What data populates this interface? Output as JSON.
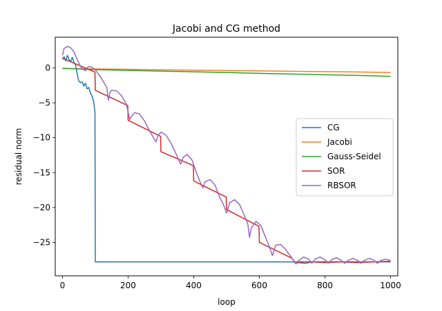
{
  "chart_data": {
    "type": "line",
    "title": "Jacobi and CG method",
    "xlabel": "loop",
    "ylabel": "residual norm",
    "xlim": [
      -22,
      1022
    ],
    "ylim": [
      -29.8,
      4.4
    ],
    "xticks": [
      0,
      200,
      400,
      600,
      800,
      1000
    ],
    "yticks": [
      0,
      -5,
      -10,
      -15,
      -20,
      -25
    ],
    "grid": false,
    "legend_position": "center-right",
    "series": [
      {
        "name": "CG",
        "color": "#1f77b4",
        "points": [
          [
            0,
            1.2
          ],
          [
            5,
            1.6
          ],
          [
            10,
            1.0
          ],
          [
            15,
            1.8
          ],
          [
            20,
            1.2
          ],
          [
            25,
            0.9
          ],
          [
            30,
            1.5
          ],
          [
            35,
            0.8
          ],
          [
            40,
            0.4
          ],
          [
            45,
            -0.8
          ],
          [
            48,
            -1.6
          ],
          [
            50,
            -1.9
          ],
          [
            55,
            -2.1
          ],
          [
            60,
            -2.0
          ],
          [
            65,
            -2.6
          ],
          [
            70,
            -2.2
          ],
          [
            75,
            -3.0
          ],
          [
            80,
            -2.8
          ],
          [
            85,
            -3.6
          ],
          [
            90,
            -4.0
          ],
          [
            95,
            -4.8
          ],
          [
            99,
            -6.3
          ],
          [
            100,
            -27.8
          ],
          [
            200,
            -27.8
          ],
          [
            400,
            -27.8
          ],
          [
            600,
            -27.8
          ],
          [
            700,
            -27.8
          ],
          [
            1000,
            -27.8
          ]
        ]
      },
      {
        "name": "Jacobi",
        "color": "#ff7f0e",
        "points": [
          [
            0,
            -0.1
          ],
          [
            100,
            -0.15
          ],
          [
            200,
            -0.2
          ],
          [
            300,
            -0.28
          ],
          [
            400,
            -0.32
          ],
          [
            500,
            -0.38
          ],
          [
            600,
            -0.42
          ],
          [
            700,
            -0.48
          ],
          [
            800,
            -0.53
          ],
          [
            900,
            -0.58
          ],
          [
            1000,
            -0.65
          ]
        ]
      },
      {
        "name": "Gauss-Seidel",
        "color": "#2ca02c",
        "points": [
          [
            0,
            -0.05
          ],
          [
            100,
            -0.25
          ],
          [
            200,
            -0.35
          ],
          [
            300,
            -0.45
          ],
          [
            400,
            -0.55
          ],
          [
            500,
            -0.65
          ],
          [
            600,
            -0.78
          ],
          [
            700,
            -0.88
          ],
          [
            800,
            -0.98
          ],
          [
            900,
            -1.08
          ],
          [
            1000,
            -1.2
          ]
        ]
      },
      {
        "name": "SOR",
        "color": "#d62728",
        "points": [
          [
            0,
            1.4
          ],
          [
            99,
            -0.6
          ],
          [
            100,
            -3.2
          ],
          [
            199,
            -5.4
          ],
          [
            200,
            -7.5
          ],
          [
            299,
            -9.8
          ],
          [
            300,
            -12.0
          ],
          [
            399,
            -14.0
          ],
          [
            400,
            -16.2
          ],
          [
            499,
            -18.5
          ],
          [
            500,
            -20.3
          ],
          [
            599,
            -22.7
          ],
          [
            600,
            -25.0
          ],
          [
            700,
            -27.3
          ],
          [
            710,
            -28.0
          ],
          [
            720,
            -27.9
          ],
          [
            740,
            -28.0
          ],
          [
            760,
            -27.8
          ],
          [
            800,
            -27.9
          ],
          [
            850,
            -27.8
          ],
          [
            900,
            -27.9
          ],
          [
            950,
            -27.8
          ],
          [
            1000,
            -27.7
          ]
        ]
      },
      {
        "name": "RBSOR",
        "color": "#9467bd",
        "points": [
          [
            0,
            1.8
          ],
          [
            5,
            2.8
          ],
          [
            15,
            3.1
          ],
          [
            25,
            2.9
          ],
          [
            35,
            2.3
          ],
          [
            45,
            1.2
          ],
          [
            55,
            0.2
          ],
          [
            65,
            -0.3
          ],
          [
            70,
            -0.4
          ],
          [
            75,
            0.0
          ],
          [
            80,
            0.2
          ],
          [
            90,
            0.1
          ],
          [
            100,
            -0.3
          ],
          [
            110,
            -0.9
          ],
          [
            120,
            -1.6
          ],
          [
            130,
            -2.4
          ],
          [
            135,
            -2.8
          ],
          [
            140,
            -4.6
          ],
          [
            145,
            -3.5
          ],
          [
            150,
            -3.2
          ],
          [
            165,
            -3.3
          ],
          [
            180,
            -4.0
          ],
          [
            195,
            -5.2
          ],
          [
            205,
            -7.4
          ],
          [
            210,
            -7.0
          ],
          [
            220,
            -6.4
          ],
          [
            235,
            -6.6
          ],
          [
            250,
            -7.6
          ],
          [
            265,
            -9.0
          ],
          [
            285,
            -10.6
          ],
          [
            292,
            -9.6
          ],
          [
            300,
            -9.2
          ],
          [
            315,
            -9.6
          ],
          [
            330,
            -10.7
          ],
          [
            345,
            -12.2
          ],
          [
            360,
            -13.8
          ],
          [
            368,
            -12.8
          ],
          [
            380,
            -12.4
          ],
          [
            395,
            -13.2
          ],
          [
            408,
            -15.0
          ],
          [
            420,
            -16.4
          ],
          [
            428,
            -17.2
          ],
          [
            435,
            -16.3
          ],
          [
            450,
            -16.0
          ],
          [
            465,
            -16.8
          ],
          [
            478,
            -18.4
          ],
          [
            490,
            -19.5
          ],
          [
            500,
            -20.8
          ],
          [
            510,
            -19.3
          ],
          [
            525,
            -18.9
          ],
          [
            540,
            -19.6
          ],
          [
            555,
            -21.2
          ],
          [
            565,
            -22.4
          ],
          [
            570,
            -24.3
          ],
          [
            575,
            -23.0
          ],
          [
            590,
            -22.0
          ],
          [
            605,
            -22.6
          ],
          [
            618,
            -24.2
          ],
          [
            628,
            -25.3
          ],
          [
            640,
            -26.9
          ],
          [
            650,
            -25.4
          ],
          [
            665,
            -25.3
          ],
          [
            680,
            -26.0
          ],
          [
            692,
            -26.8
          ],
          [
            705,
            -27.6
          ],
          [
            712,
            -28.1
          ],
          [
            720,
            -27.6
          ],
          [
            735,
            -27.1
          ],
          [
            750,
            -27.4
          ],
          [
            760,
            -28.0
          ],
          [
            770,
            -27.4
          ],
          [
            785,
            -27.1
          ],
          [
            800,
            -27.5
          ],
          [
            810,
            -28.0
          ],
          [
            820,
            -27.5
          ],
          [
            835,
            -27.2
          ],
          [
            850,
            -27.6
          ],
          [
            860,
            -28.0
          ],
          [
            870,
            -27.6
          ],
          [
            885,
            -27.3
          ],
          [
            900,
            -27.6
          ],
          [
            910,
            -28.0
          ],
          [
            920,
            -27.6
          ],
          [
            935,
            -27.3
          ],
          [
            950,
            -27.6
          ],
          [
            960,
            -28.0
          ],
          [
            970,
            -27.6
          ],
          [
            985,
            -27.4
          ],
          [
            1000,
            -27.6
          ]
        ]
      }
    ]
  }
}
